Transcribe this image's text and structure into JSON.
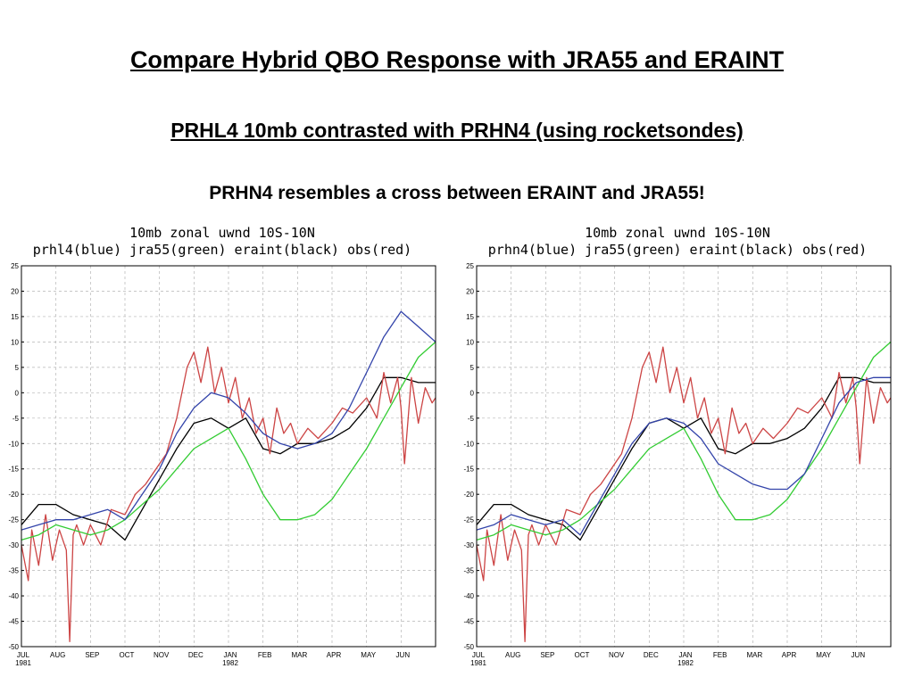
{
  "headings": {
    "title": "Compare Hybrid QBO Response with JRA55 and ERAINT",
    "subtitle": "PRHL4 10mb contrasted with PRHN4 (using rocketsondes)",
    "note": "PRHN4 resembles a cross between ERAINT and JRA55!"
  },
  "chart_data": [
    {
      "type": "line",
      "title": "10mb zonal uwnd 10S-10N",
      "subtitle": "prhl4(blue) jra55(green) eraint(black) obs(red)",
      "xlabel": "",
      "ylabel": "",
      "x_range": [
        "1981-07-01",
        "1982-06-30"
      ],
      "x_ticks": [
        "JUL",
        "AUG",
        "SEP",
        "OCT",
        "NOV",
        "DEC",
        "JAN",
        "FEB",
        "MAR",
        "APR",
        "MAY",
        "JUN"
      ],
      "x_year_labels": [
        "1981",
        "1982"
      ],
      "ylim": [
        -50,
        25
      ],
      "y_ticks": [
        25,
        20,
        15,
        10,
        5,
        0,
        -5,
        -10,
        -15,
        -20,
        -25,
        -30,
        -35,
        -40,
        -45,
        -50
      ],
      "grid": true,
      "series": [
        {
          "name": "eraint",
          "color": "#000000",
          "x_month": [
            0,
            0.5,
            1,
            1.5,
            2,
            2.5,
            3,
            3.5,
            4,
            4.5,
            5,
            5.5,
            6,
            6.5,
            7,
            7.5,
            8,
            8.5,
            9,
            9.5,
            10,
            10.5,
            11,
            11.5,
            12
          ],
          "values": [
            -26,
            -22,
            -22,
            -24,
            -25,
            -26,
            -29,
            -23,
            -17,
            -11,
            -6,
            -5,
            -7,
            -5,
            -11,
            -12,
            -10,
            -10,
            -9,
            -7,
            -3,
            3,
            3,
            2,
            2
          ]
        },
        {
          "name": "obs",
          "color": "#cc4444",
          "x_month": [
            0,
            0.2,
            0.3,
            0.5,
            0.7,
            0.9,
            1.1,
            1.3,
            1.4,
            1.5,
            1.6,
            1.8,
            2,
            2.3,
            2.6,
            3,
            3.3,
            3.6,
            3.9,
            4.2,
            4.5,
            4.8,
            5,
            5.2,
            5.4,
            5.6,
            5.8,
            6,
            6.2,
            6.4,
            6.6,
            6.8,
            7,
            7.2,
            7.4,
            7.6,
            7.8,
            8,
            8.3,
            8.6,
            9,
            9.3,
            9.6,
            10,
            10.3,
            10.5,
            10.7,
            10.9,
            11,
            11.1,
            11.3,
            11.5,
            11.7,
            11.9,
            12
          ],
          "values": [
            -30,
            -37,
            -27,
            -34,
            -24,
            -33,
            -27,
            -31,
            -49,
            -28,
            -26,
            -30,
            -26,
            -30,
            -23,
            -24,
            -20,
            -18,
            -15,
            -12,
            -5,
            5,
            8,
            2,
            9,
            0,
            5,
            -2,
            3,
            -5,
            -1,
            -8,
            -5,
            -12,
            -3,
            -8,
            -6,
            -10,
            -7,
            -9,
            -6,
            -3,
            -4,
            -1,
            -5,
            4,
            -2,
            3,
            -3,
            -14,
            3,
            -6,
            1,
            -2,
            -1
          ]
        },
        {
          "name": "jra55",
          "color": "#33cc33",
          "x_month": [
            0,
            0.5,
            1,
            1.5,
            2,
            2.5,
            3,
            3.5,
            4,
            4.5,
            5,
            5.5,
            6,
            6.5,
            7,
            7.5,
            8,
            8.5,
            9,
            9.5,
            10,
            10.5,
            11,
            11.5,
            12
          ],
          "values": [
            -29,
            -28,
            -26,
            -27,
            -28,
            -27,
            -25,
            -22,
            -19,
            -15,
            -11,
            -9,
            -7,
            -13,
            -20,
            -25,
            -25,
            -24,
            -21,
            -16,
            -11,
            -5,
            1,
            7,
            10
          ]
        },
        {
          "name": "prhl4",
          "color": "#3344aa",
          "x_month": [
            0,
            0.5,
            1,
            1.5,
            2,
            2.5,
            3,
            3.5,
            4,
            4.5,
            5,
            5.5,
            6,
            6.5,
            7,
            7.5,
            8,
            8.5,
            9,
            9.5,
            10,
            10.5,
            11,
            11.5,
            12
          ],
          "values": [
            -27,
            -26,
            -25,
            -25,
            -24,
            -23,
            -25,
            -20,
            -15,
            -8,
            -3,
            0,
            -1,
            -4,
            -8,
            -10,
            -11,
            -10,
            -8,
            -3,
            4,
            11,
            16,
            13,
            10
          ]
        }
      ]
    },
    {
      "type": "line",
      "title": "10mb zonal uwnd 10S-10N",
      "subtitle": "prhn4(blue) jra55(green) eraint(black) obs(red)",
      "xlabel": "",
      "ylabel": "",
      "x_range": [
        "1981-07-01",
        "1982-06-30"
      ],
      "x_ticks": [
        "JUL",
        "AUG",
        "SEP",
        "OCT",
        "NOV",
        "DEC",
        "JAN",
        "FEB",
        "MAR",
        "APR",
        "MAY",
        "JUN"
      ],
      "x_year_labels": [
        "1981",
        "1982"
      ],
      "ylim": [
        -50,
        25
      ],
      "y_ticks": [
        25,
        20,
        15,
        10,
        5,
        0,
        -5,
        -10,
        -15,
        -20,
        -25,
        -30,
        -35,
        -40,
        -45,
        -50
      ],
      "grid": true,
      "series": [
        {
          "name": "eraint",
          "color": "#000000",
          "x_month": [
            0,
            0.5,
            1,
            1.5,
            2,
            2.5,
            3,
            3.5,
            4,
            4.5,
            5,
            5.5,
            6,
            6.5,
            7,
            7.5,
            8,
            8.5,
            9,
            9.5,
            10,
            10.5,
            11,
            11.5,
            12
          ],
          "values": [
            -26,
            -22,
            -22,
            -24,
            -25,
            -26,
            -29,
            -23,
            -17,
            -11,
            -6,
            -5,
            -7,
            -5,
            -11,
            -12,
            -10,
            -10,
            -9,
            -7,
            -3,
            3,
            3,
            2,
            2
          ]
        },
        {
          "name": "obs",
          "color": "#cc4444",
          "x_month": [
            0,
            0.2,
            0.3,
            0.5,
            0.7,
            0.9,
            1.1,
            1.3,
            1.4,
            1.5,
            1.6,
            1.8,
            2,
            2.3,
            2.6,
            3,
            3.3,
            3.6,
            3.9,
            4.2,
            4.5,
            4.8,
            5,
            5.2,
            5.4,
            5.6,
            5.8,
            6,
            6.2,
            6.4,
            6.6,
            6.8,
            7,
            7.2,
            7.4,
            7.6,
            7.8,
            8,
            8.3,
            8.6,
            9,
            9.3,
            9.6,
            10,
            10.3,
            10.5,
            10.7,
            10.9,
            11,
            11.1,
            11.3,
            11.5,
            11.7,
            11.9,
            12
          ],
          "values": [
            -30,
            -37,
            -27,
            -34,
            -24,
            -33,
            -27,
            -31,
            -49,
            -28,
            -26,
            -30,
            -26,
            -30,
            -23,
            -24,
            -20,
            -18,
            -15,
            -12,
            -5,
            5,
            8,
            2,
            9,
            0,
            5,
            -2,
            3,
            -5,
            -1,
            -8,
            -5,
            -12,
            -3,
            -8,
            -6,
            -10,
            -7,
            -9,
            -6,
            -3,
            -4,
            -1,
            -5,
            4,
            -2,
            3,
            -3,
            -14,
            3,
            -6,
            1,
            -2,
            -1
          ]
        },
        {
          "name": "jra55",
          "color": "#33cc33",
          "x_month": [
            0,
            0.5,
            1,
            1.5,
            2,
            2.5,
            3,
            3.5,
            4,
            4.5,
            5,
            5.5,
            6,
            6.5,
            7,
            7.5,
            8,
            8.5,
            9,
            9.5,
            10,
            10.5,
            11,
            11.5,
            12
          ],
          "values": [
            -29,
            -28,
            -26,
            -27,
            -28,
            -27,
            -25,
            -22,
            -19,
            -15,
            -11,
            -9,
            -7,
            -13,
            -20,
            -25,
            -25,
            -24,
            -21,
            -16,
            -11,
            -5,
            1,
            7,
            10
          ]
        },
        {
          "name": "prhn4",
          "color": "#3344aa",
          "x_month": [
            0,
            0.5,
            1,
            1.5,
            2,
            2.5,
            3,
            3.5,
            4,
            4.5,
            5,
            5.5,
            6,
            6.5,
            7,
            7.5,
            8,
            8.5,
            9,
            9.5,
            10,
            10.5,
            11,
            11.5,
            12
          ],
          "values": [
            -27,
            -26,
            -24,
            -25,
            -26,
            -25,
            -28,
            -22,
            -16,
            -10,
            -6,
            -5,
            -6,
            -9,
            -14,
            -16,
            -18,
            -19,
            -19,
            -16,
            -9,
            -2,
            2,
            3,
            3
          ]
        }
      ]
    }
  ]
}
